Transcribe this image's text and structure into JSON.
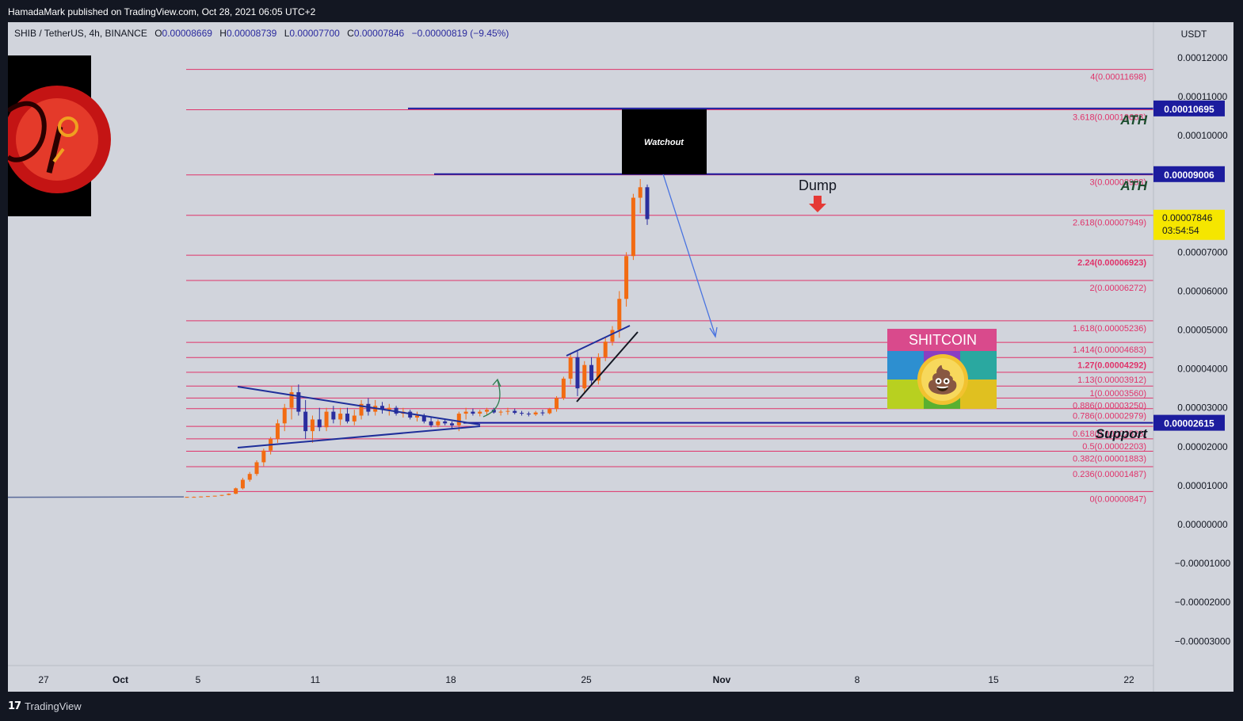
{
  "header": {
    "published_by": "HamadaMark published on TradingView.com, Oct 28, 2021 06:05 UTC+2"
  },
  "symbol_bar": {
    "symbol": "SHIB / TetherUS, 4h, BINANCE",
    "open_label": "O",
    "open": "0.00008669",
    "high_label": "H",
    "high": "0.00008739",
    "low_label": "L",
    "low": "0.00007700",
    "close_label": "C",
    "close": "0.00007846",
    "change": "−0.00000819 (−9.45%)"
  },
  "price_axis": {
    "currency": "USDT",
    "ticks": [
      "0.00012000",
      "0.00011000",
      "0.00010000",
      "0.00007000",
      "0.00006000",
      "0.00005000",
      "0.00004000",
      "0.00003000",
      "0.00002000",
      "0.00001000",
      "0.00000000",
      "−0.00001000",
      "−0.00002000",
      "−0.00003000"
    ],
    "badges": [
      {
        "label": "0.00010695",
        "color": "#1c1c9e"
      },
      {
        "label": "0.00009006",
        "color": "#1c1c9e"
      },
      {
        "label": "0.00002615",
        "color": "#1c1c9e"
      }
    ],
    "current_price": "0.00007846",
    "countdown": "03:54:54",
    "current_color": "#f5e600"
  },
  "time_axis": {
    "labels": [
      {
        "text": "27",
        "bold": false
      },
      {
        "text": "Oct",
        "bold": true
      },
      {
        "text": "5",
        "bold": false
      },
      {
        "text": "11",
        "bold": false
      },
      {
        "text": "18",
        "bold": false
      },
      {
        "text": "25",
        "bold": false
      },
      {
        "text": "Nov",
        "bold": true
      },
      {
        "text": "8",
        "bold": false
      },
      {
        "text": "15",
        "bold": false
      },
      {
        "text": "22",
        "bold": false
      }
    ]
  },
  "annotations": {
    "watchout": "Watchout",
    "dump": "Dump",
    "ath_1": "ATH",
    "ath_2": "ATH",
    "support": "Support",
    "shitcoin": "SHITCOIN",
    "shitcoin_emoji": "💩"
  },
  "footer": {
    "brand": "TradingView",
    "logo_glyph": "17"
  },
  "chart_data": {
    "type": "candlestick",
    "y_units": "USDT",
    "ylim": [
      -3.5e-05,
      0.000128
    ],
    "fib_levels": [
      {
        "label": "4(0.00011698)",
        "value": 0.00011698,
        "bold": false
      },
      {
        "label": "3.618(0.00010663)",
        "value": 0.00010663,
        "bold": false
      },
      {
        "label": "3(0.00008988)",
        "value": 8.988e-05,
        "bold": false
      },
      {
        "label": "2.618(0.00007949)",
        "value": 7.949e-05,
        "bold": false
      },
      {
        "label": "2.24(0.00006923)",
        "value": 6.923e-05,
        "bold": true
      },
      {
        "label": "2(0.00006272)",
        "value": 6.272e-05,
        "bold": false
      },
      {
        "label": "1.618(0.00005236)",
        "value": 5.236e-05,
        "bold": false
      },
      {
        "label": "1.414(0.00004683)",
        "value": 4.683e-05,
        "bold": false
      },
      {
        "label": "1.27(0.00004292)",
        "value": 4.292e-05,
        "bold": true
      },
      {
        "label": "1.13(0.00003912)",
        "value": 3.912e-05,
        "bold": false
      },
      {
        "label": "1(0.00003560)",
        "value": 3.56e-05,
        "bold": false
      },
      {
        "label": "0.886(0.00003250)",
        "value": 3.25e-05,
        "bold": false
      },
      {
        "label": "0.786(0.00002979)",
        "value": 2.979e-05,
        "bold": false
      },
      {
        "label": "0.618(0.00002523)",
        "value": 2.523e-05,
        "bold": false
      },
      {
        "label": "0.5(0.00002203)",
        "value": 2.203e-05,
        "bold": false
      },
      {
        "label": "0.382(0.00001883)",
        "value": 1.883e-05,
        "bold": false
      },
      {
        "label": "0.236(0.00001487)",
        "value": 1.487e-05,
        "bold": false
      },
      {
        "label": "0(0.00000847)",
        "value": 8.47e-06,
        "bold": false
      }
    ],
    "horizontal_levels": [
      0.00010695,
      9.006e-05,
      2.615e-05
    ],
    "candles": [
      [
        7e-06,
        7.1e-06,
        6.9e-06,
        7.1e-06
      ],
      [
        7.1e-06,
        7.2e-06,
        7e-06,
        7.1e-06
      ],
      [
        7.1e-06,
        7.2e-06,
        7e-06,
        7.2e-06
      ],
      [
        7.2e-06,
        7.3e-06,
        7.1e-06,
        7.3e-06
      ],
      [
        7.3e-06,
        7.4e-06,
        7.2e-06,
        7.4e-06
      ],
      [
        7.4e-06,
        7.6e-06,
        7.3e-06,
        7.6e-06
      ],
      [
        7.6e-06,
        8e-06,
        7.5e-06,
        7.9e-06
      ],
      [
        7.9e-06,
        9.5e-06,
        7.8e-06,
        9.3e-06
      ],
      [
        9.3e-06,
        1.2e-05,
        9e-06,
        1.15e-05
      ],
      [
        1.15e-05,
        1.35e-05,
        1.1e-05,
        1.3e-05
      ],
      [
        1.3e-05,
        1.65e-05,
        1.25e-05,
        1.6e-05
      ],
      [
        1.6e-05,
        1.95e-05,
        1.5e-05,
        1.9e-05
      ],
      [
        1.9e-05,
        2.25e-05,
        1.8e-05,
        2.2e-05
      ],
      [
        2.2e-05,
        2.7e-05,
        2.1e-05,
        2.6e-05
      ],
      [
        2.6e-05,
        3.1e-05,
        2.4e-05,
        3e-05
      ],
      [
        3e-05,
        3.55e-05,
        2.7e-05,
        3.4e-05
      ],
      [
        3.4e-05,
        3.6e-05,
        2.8e-05,
        2.9e-05
      ],
      [
        2.9e-05,
        3.2e-05,
        2.2e-05,
        2.4e-05
      ],
      [
        2.4e-05,
        2.8e-05,
        2.1e-05,
        2.7e-05
      ],
      [
        2.7e-05,
        3e-05,
        2.4e-05,
        2.5e-05
      ],
      [
        2.5e-05,
        3e-05,
        2.4e-05,
        2.9e-05
      ],
      [
        2.9e-05,
        3.05e-05,
        2.6e-05,
        2.7e-05
      ],
      [
        2.7e-05,
        3e-05,
        2.55e-05,
        2.85e-05
      ],
      [
        2.85e-05,
        3e-05,
        2.6e-05,
        2.65e-05
      ],
      [
        2.65e-05,
        2.95e-05,
        2.55e-05,
        2.8e-05
      ],
      [
        2.8e-05,
        3.2e-05,
        2.7e-05,
        3.1e-05
      ],
      [
        3.1e-05,
        3.25e-05,
        2.8e-05,
        2.9e-05
      ],
      [
        2.9e-05,
        3.2e-05,
        2.8e-05,
        3.05e-05
      ],
      [
        3.05e-05,
        3.15e-05,
        2.85e-05,
        2.95e-05
      ],
      [
        2.95e-05,
        3.1e-05,
        2.8e-05,
        3e-05
      ],
      [
        3e-05,
        3.05e-05,
        2.8e-05,
        2.85e-05
      ],
      [
        2.85e-05,
        3e-05,
        2.75e-05,
        2.9e-05
      ],
      [
        2.9e-05,
        2.95e-05,
        2.7e-05,
        2.75e-05
      ],
      [
        2.75e-05,
        2.9e-05,
        2.65e-05,
        2.8e-05
      ],
      [
        2.8e-05,
        2.85e-05,
        2.6e-05,
        2.65e-05
      ],
      [
        2.65e-05,
        2.75e-05,
        2.5e-05,
        2.55e-05
      ],
      [
        2.55e-05,
        2.7e-05,
        2.5e-05,
        2.65e-05
      ],
      [
        2.65e-05,
        2.72e-05,
        2.55e-05,
        2.6e-05
      ],
      [
        2.6e-05,
        2.65e-05,
        2.45e-05,
        2.55e-05
      ],
      [
        2.55e-05,
        2.9e-05,
        2.4e-05,
        2.85e-05
      ],
      [
        2.85e-05,
        3e-05,
        2.7e-05,
        2.9e-05
      ],
      [
        2.9e-05,
        2.98e-05,
        2.8e-05,
        2.85e-05
      ],
      [
        2.85e-05,
        2.95e-05,
        2.78e-05,
        2.9e-05
      ],
      [
        2.9e-05,
        3e-05,
        2.8e-05,
        2.95e-05
      ],
      [
        2.95e-05,
        3e-05,
        2.85e-05,
        2.88e-05
      ],
      [
        2.88e-05,
        2.95e-05,
        2.8e-05,
        2.9e-05
      ],
      [
        2.9e-05,
        3e-05,
        2.82e-05,
        2.92e-05
      ],
      [
        2.92e-05,
        2.98e-05,
        2.83e-05,
        2.87e-05
      ],
      [
        2.87e-05,
        2.92e-05,
        2.8e-05,
        2.85e-05
      ],
      [
        2.85e-05,
        2.9e-05,
        2.78e-05,
        2.83e-05
      ],
      [
        2.83e-05,
        2.92e-05,
        2.79e-05,
        2.88e-05
      ],
      [
        2.88e-05,
        2.95e-05,
        2.8e-05,
        2.86e-05
      ],
      [
        2.86e-05,
        3e-05,
        2.83e-05,
        2.97e-05
      ],
      [
        2.97e-05,
        3.3e-05,
        2.9e-05,
        3.25e-05
      ],
      [
        3.25e-05,
        3.8e-05,
        3.2e-05,
        3.75e-05
      ],
      [
        3.75e-05,
        4.4e-05,
        3.6e-05,
        4.3e-05
      ],
      [
        4.3e-05,
        4.45e-05,
        3.3e-05,
        3.5e-05
      ],
      [
        3.5e-05,
        4.2e-05,
        3.4e-05,
        4.1e-05
      ],
      [
        4.1e-05,
        4.3e-05,
        3.6e-05,
        3.7e-05
      ],
      [
        3.7e-05,
        4.4e-05,
        3.6e-05,
        4.3e-05
      ],
      [
        4.3e-05,
        4.8e-05,
        4.2e-05,
        4.7e-05
      ],
      [
        4.7e-05,
        5.1e-05,
        4.6e-05,
        5e-05
      ],
      [
        5e-05,
        6e-05,
        4.8e-05,
        5.8e-05
      ],
      [
        5.8e-05,
        7e-05,
        5.6e-05,
        6.9e-05
      ],
      [
        6.9e-05,
        8.5e-05,
        6.8e-05,
        8.4e-05
      ],
      [
        8.4e-05,
        8.88e-05,
        8e-05,
        8.67e-05
      ],
      [
        8.67e-05,
        8.74e-05,
        7.7e-05,
        7.85e-05
      ]
    ]
  }
}
